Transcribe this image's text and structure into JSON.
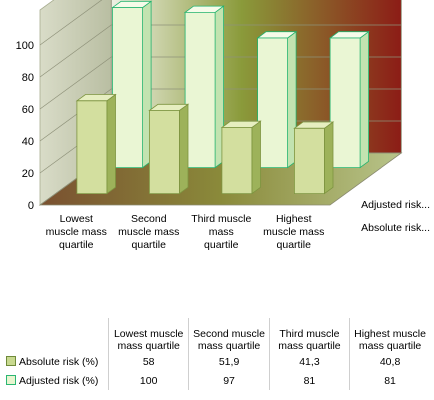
{
  "colors": {
    "absolute_front": "#d3df9f",
    "absolute_top": "#e6eec0",
    "absolute_side": "#9db25a",
    "absolute_stroke": "#7d9440",
    "adjusted_front": "#eaf6d4",
    "adjusted_top": "#f6fbe9",
    "adjusted_side": "#c2e3b0",
    "adjusted_stroke": "#22b36e"
  },
  "chart_data": {
    "type": "bar",
    "subtype": "3d-column",
    "categories": [
      "Lowest muscle mass quartile",
      "Second muscle mass quartile",
      "Third muscle mass quartile",
      "Highest muscle mass quartile"
    ],
    "category_lines": [
      [
        "Lowest",
        "muscle mass",
        "quartile"
      ],
      [
        "Second",
        "muscle mass",
        "quartile"
      ],
      [
        "Third muscle",
        "mass",
        "quartile"
      ],
      [
        "Highest",
        "muscle mass",
        "quartile"
      ]
    ],
    "series": [
      {
        "name": "Absolute risk (%)",
        "values": [
          58,
          51.9,
          41.3,
          40.8
        ],
        "depth_label": "Absolute risk..."
      },
      {
        "name": "Adjusted risk (%)",
        "values": [
          100,
          97,
          81,
          81
        ],
        "depth_label": "Adjusted risk..."
      }
    ],
    "ylim": [
      0,
      100
    ],
    "yticks": [
      "0",
      "20",
      "40",
      "60",
      "80",
      "100"
    ],
    "grid": true,
    "legend": "data-table-below"
  },
  "table": {
    "header_lines": [
      [
        "Lowest muscle",
        "mass quartile"
      ],
      [
        "Second muscle",
        "mass quartile"
      ],
      [
        "Third muscle",
        "mass quartile"
      ],
      [
        "Highest muscle",
        "mass quartile"
      ]
    ],
    "rows": [
      {
        "label": "Absolute risk (%)",
        "values": [
          "58",
          "51,9",
          "41,3",
          "40,8"
        ]
      },
      {
        "label": "Adjusted risk (%)",
        "values": [
          "100",
          "97",
          "81",
          "81"
        ]
      }
    ]
  }
}
